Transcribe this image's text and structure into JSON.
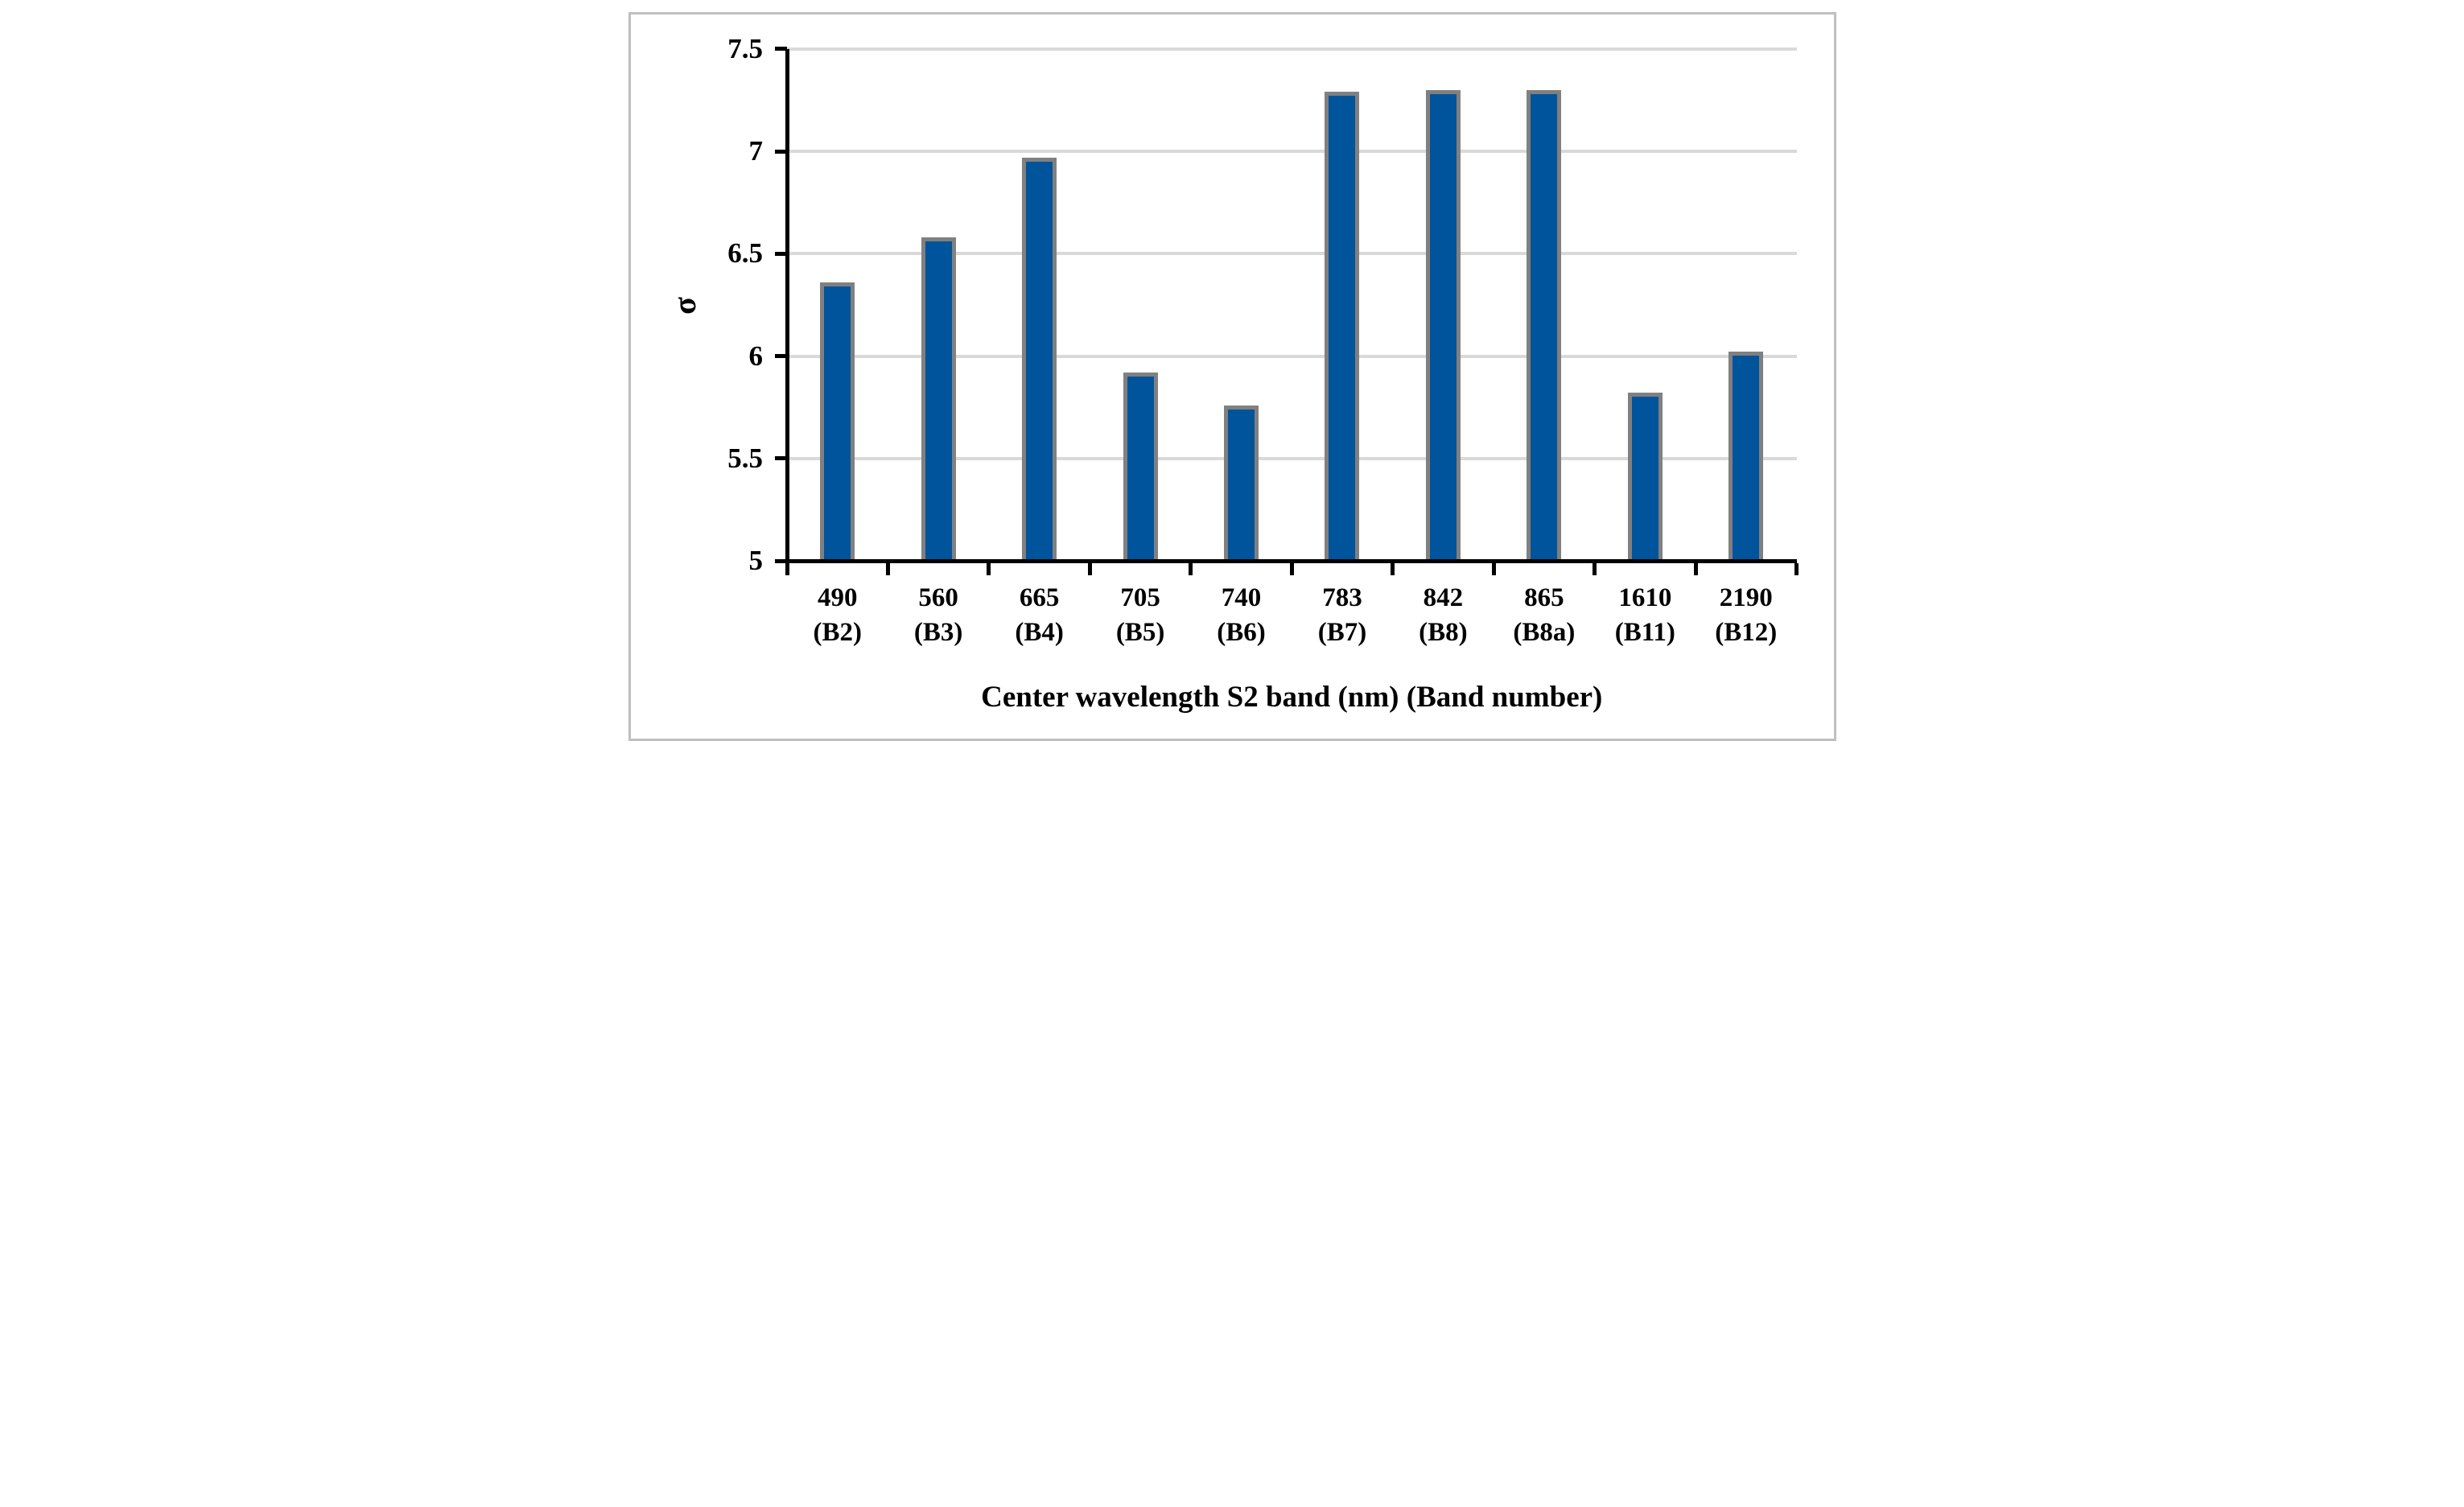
{
  "figure": {
    "background": "#FFFFFF",
    "border_color": "#BFBFBF"
  },
  "chart_data": {
    "type": "bar",
    "title": "",
    "xlabel": "Center wavelength S2 band (nm) (Band number)",
    "ylabel": "σ",
    "categories": [
      {
        "line1": "490",
        "line2": "(B2)"
      },
      {
        "line1": "560",
        "line2": "(B3)"
      },
      {
        "line1": "665",
        "line2": "(B4)"
      },
      {
        "line1": "705",
        "line2": "(B5)"
      },
      {
        "line1": "740",
        "line2": "(B6)"
      },
      {
        "line1": "783",
        "line2": "(B7)"
      },
      {
        "line1": "842",
        "line2": "(B8)"
      },
      {
        "line1": "865",
        "line2": "(B8a)"
      },
      {
        "line1": "1610",
        "line2": "(B11)"
      },
      {
        "line1": "2190",
        "line2": "(B12)"
      }
    ],
    "values": [
      6.36,
      6.58,
      6.97,
      5.92,
      5.76,
      7.29,
      7.3,
      7.3,
      5.82,
      6.02
    ],
    "ylim": [
      5,
      7.5
    ],
    "ytick_step": 0.5,
    "ytick_labels": [
      "5",
      "5.5",
      "6",
      "6.5",
      "7",
      "7.5"
    ],
    "grid": true,
    "legend": false,
    "colors": {
      "bar_fill": "#00549B",
      "bar_border": "#808080",
      "gridline": "#D9D9D9",
      "axis": "#000000",
      "text": "#000000"
    }
  }
}
